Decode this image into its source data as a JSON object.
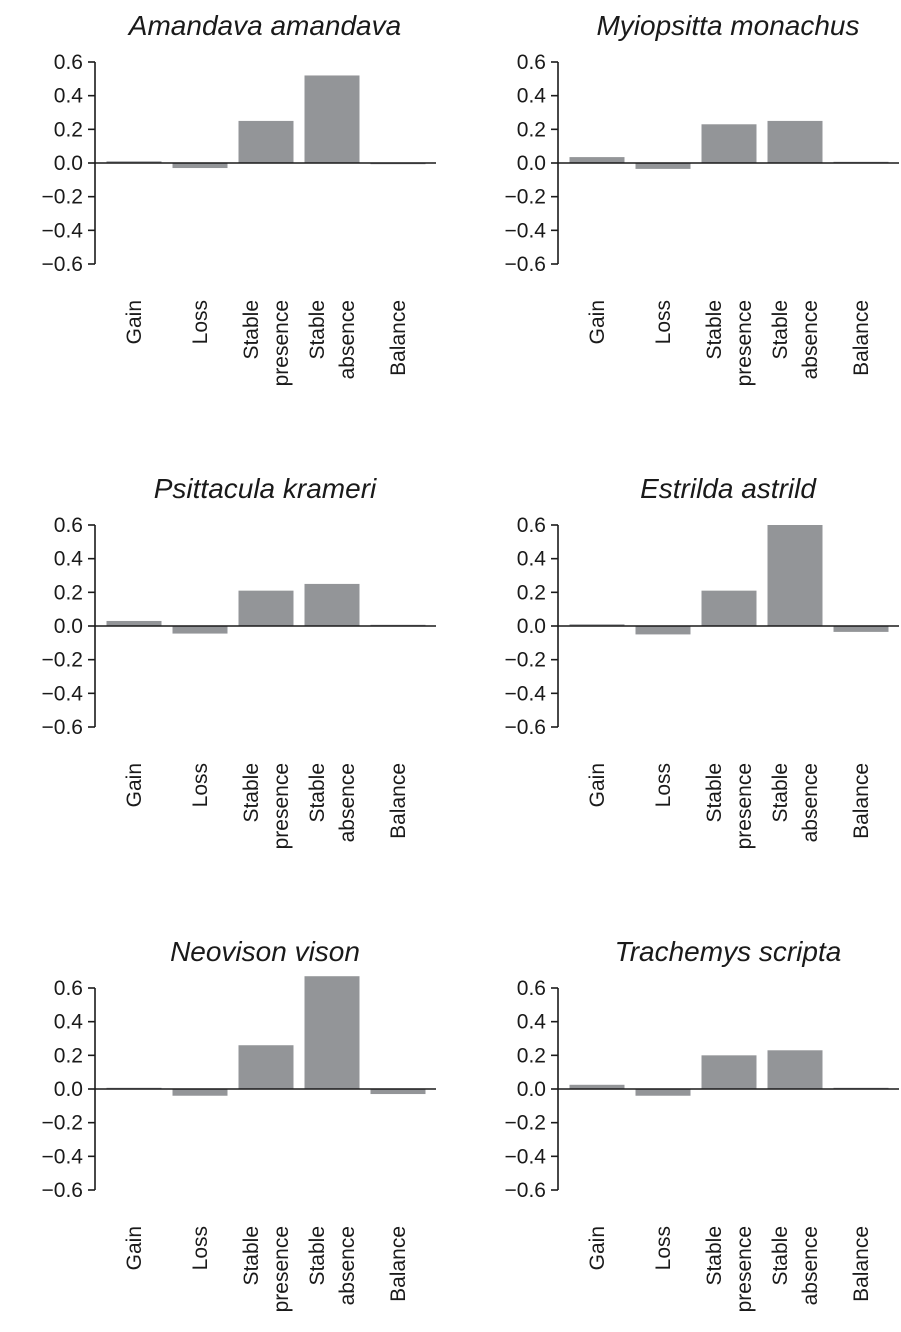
{
  "chart_data": [
    {
      "type": "bar",
      "title": "Amandava amandava",
      "categories": [
        [
          "Gain"
        ],
        [
          "Loss"
        ],
        [
          "Stable",
          "presence"
        ],
        [
          "Stable",
          "absence"
        ],
        [
          "Balance"
        ]
      ],
      "values": [
        0.01,
        -0.03,
        0.25,
        0.52,
        -0.005
      ],
      "yticks": [
        "0.6",
        "0.4",
        "0.2",
        "0.0",
        "-0.2",
        "-0.4",
        "-0.6"
      ],
      "ylim": [
        -0.6,
        0.6
      ],
      "bar_color": "#939598"
    },
    {
      "type": "bar",
      "title": "Myiopsitta monachus",
      "categories": [
        [
          "Gain"
        ],
        [
          "Loss"
        ],
        [
          "Stable",
          "presence"
        ],
        [
          "Stable",
          "absence"
        ],
        [
          "Balance"
        ]
      ],
      "values": [
        0.035,
        -0.035,
        0.23,
        0.25,
        0.0
      ],
      "yticks": [
        "0.6",
        "0.4",
        "0.2",
        "0.0",
        "-0.2",
        "-0.4",
        "-0.6"
      ],
      "ylim": [
        -0.6,
        0.6
      ],
      "bar_color": "#939598"
    },
    {
      "type": "bar",
      "title": "Psittacula krameri",
      "categories": [
        [
          "Gain"
        ],
        [
          "Loss"
        ],
        [
          "Stable",
          "presence"
        ],
        [
          "Stable",
          "absence"
        ],
        [
          "Balance"
        ]
      ],
      "values": [
        0.03,
        -0.045,
        0.21,
        0.25,
        0.0
      ],
      "yticks": [
        "0.6",
        "0.4",
        "0.2",
        "0.0",
        "-0.2",
        "-0.4",
        "-0.6"
      ],
      "ylim": [
        -0.6,
        0.6
      ],
      "bar_color": "#939598"
    },
    {
      "type": "bar",
      "title": "Estrilda astrild",
      "categories": [
        [
          "Gain"
        ],
        [
          "Loss"
        ],
        [
          "Stable",
          "presence"
        ],
        [
          "Stable",
          "absence"
        ],
        [
          "Balance"
        ]
      ],
      "values": [
        0.01,
        -0.05,
        0.21,
        0.6,
        -0.035
      ],
      "yticks": [
        "0.6",
        "0.4",
        "0.2",
        "0.0",
        "-0.2",
        "-0.4",
        "-0.6"
      ],
      "ylim": [
        -0.6,
        0.6
      ],
      "bar_color": "#939598"
    },
    {
      "type": "bar",
      "title": "Neovison vison",
      "categories": [
        [
          "Gain"
        ],
        [
          "Loss"
        ],
        [
          "Stable",
          "presence"
        ],
        [
          "Stable",
          "absence"
        ],
        [
          "Balance"
        ]
      ],
      "values": [
        0.005,
        -0.04,
        0.26,
        0.67,
        -0.03
      ],
      "yticks": [
        "0.6",
        "0.4",
        "0.2",
        "0.0",
        "-0.2",
        "-0.4",
        "-0.6"
      ],
      "ylim": [
        -0.6,
        0.6
      ],
      "bar_color": "#939598"
    },
    {
      "type": "bar",
      "title": "Trachemys scripta",
      "categories": [
        [
          "Gain"
        ],
        [
          "Loss"
        ],
        [
          "Stable",
          "presence"
        ],
        [
          "Stable",
          "absence"
        ],
        [
          "Balance"
        ]
      ],
      "values": [
        0.025,
        -0.04,
        0.2,
        0.23,
        0.0
      ],
      "yticks": [
        "0.6",
        "0.4",
        "0.2",
        "0.0",
        "-0.2",
        "-0.4",
        "-0.6"
      ],
      "ylim": [
        -0.6,
        0.6
      ],
      "bar_color": "#939598"
    }
  ]
}
